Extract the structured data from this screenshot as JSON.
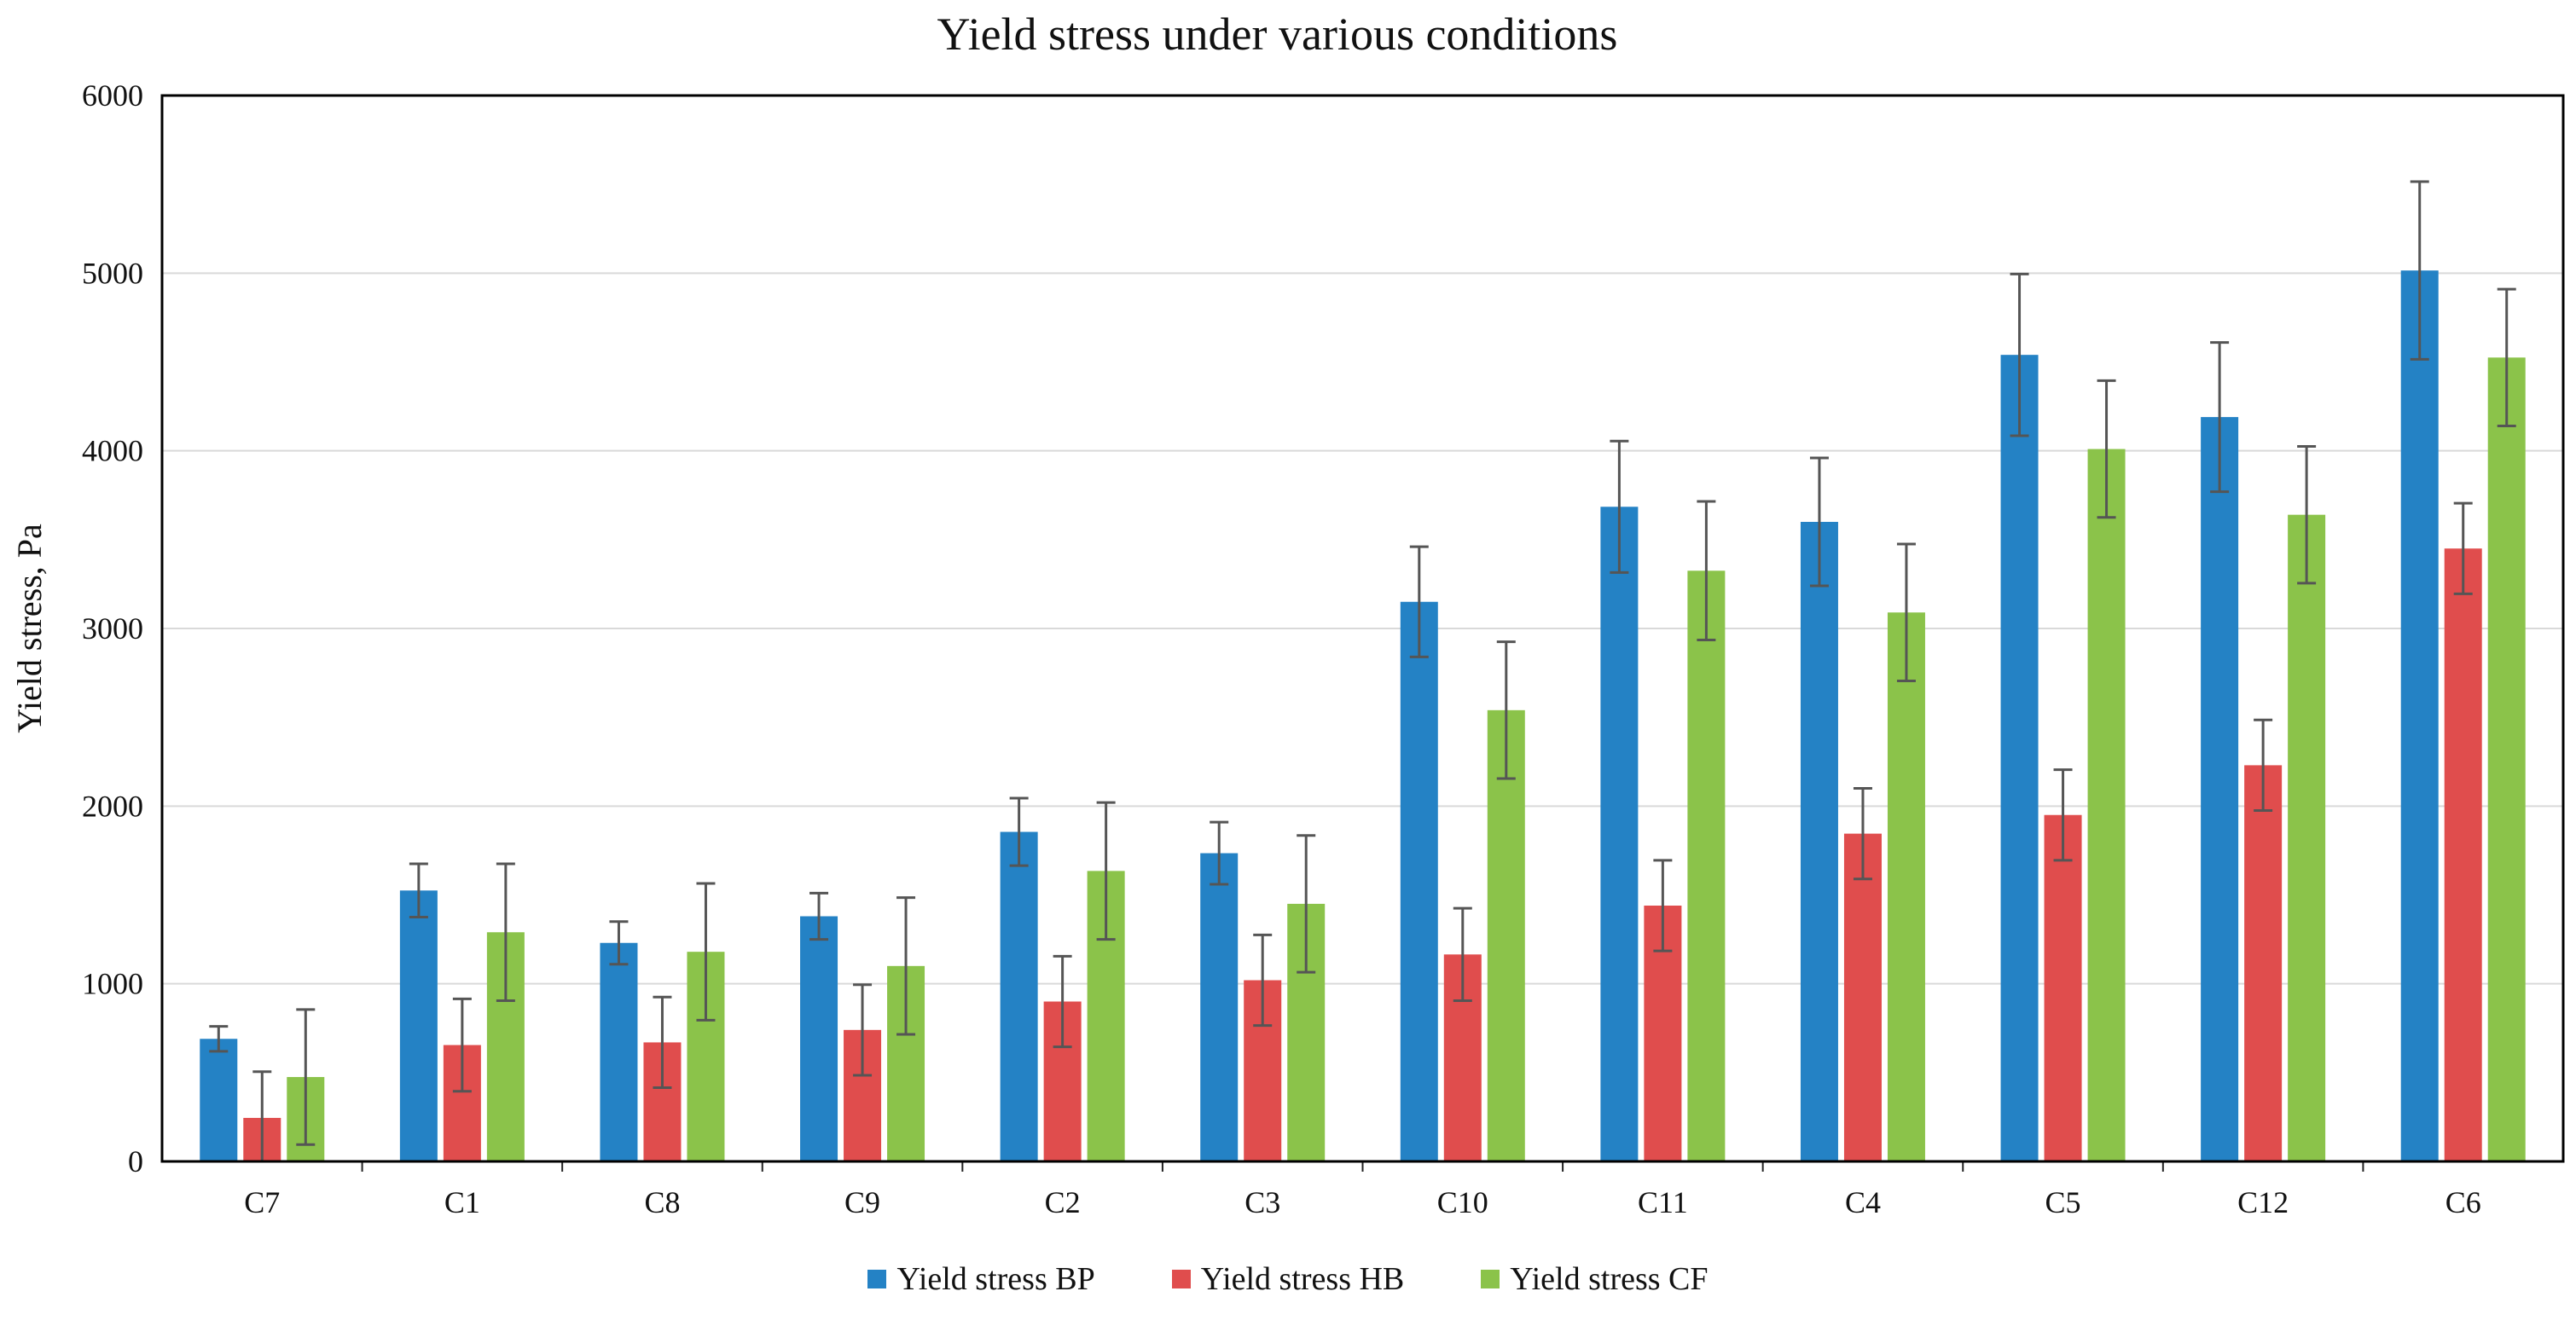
{
  "chart_data": {
    "type": "bar",
    "title": "Yield stress under various conditions",
    "xlabel": "",
    "ylabel": "Yield stress, Pa",
    "ylim": [
      0,
      6000
    ],
    "yticks": [
      0,
      1000,
      2000,
      3000,
      4000,
      5000,
      6000
    ],
    "grid": true,
    "legend_position": "bottom",
    "categories": [
      "C7",
      "C1",
      "C8",
      "C9",
      "C2",
      "C3",
      "C10",
      "C11",
      "C4",
      "C5",
      "C12",
      "C6"
    ],
    "series": [
      {
        "name": "Yield stress BP",
        "color": "#2482c5",
        "values": [
          690,
          1525,
          1230,
          1380,
          1855,
          1735,
          3150,
          3685,
          3600,
          4540,
          4190,
          5015
        ],
        "errors": [
          70,
          150,
          120,
          130,
          190,
          175,
          310,
          370,
          360,
          455,
          420,
          500
        ]
      },
      {
        "name": "Yield stress HB",
        "color": "#e04d4d",
        "values": [
          245,
          655,
          670,
          740,
          900,
          1020,
          1165,
          1440,
          1845,
          1950,
          2230,
          3450
        ],
        "errors": [
          260,
          260,
          255,
          255,
          255,
          255,
          260,
          255,
          255,
          255,
          255,
          255
        ]
      },
      {
        "name": "Yield stress CF",
        "color": "#8bc34a",
        "values": [
          475,
          1290,
          1180,
          1100,
          1635,
          1450,
          2540,
          3325,
          3090,
          4010,
          3640,
          4525
        ],
        "errors": [
          380,
          385,
          385,
          385,
          385,
          385,
          385,
          390,
          385,
          385,
          385,
          385
        ]
      }
    ]
  }
}
